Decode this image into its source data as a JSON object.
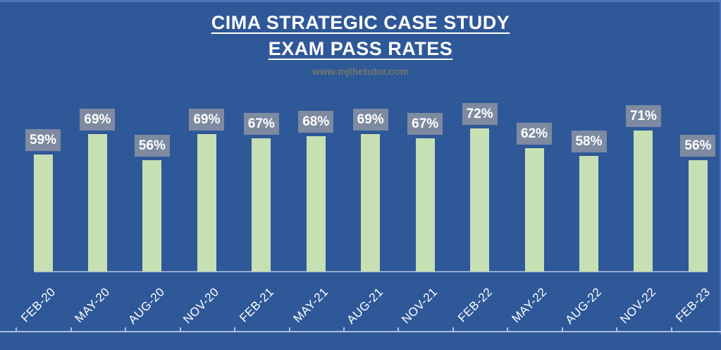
{
  "header": {
    "title_line1": "CIMA STRATEGIC CASE STUDY",
    "title_line2": "EXAM PASS RATES",
    "watermark": "www.mjthetutor.com"
  },
  "chart_data": {
    "type": "bar",
    "title": "CIMA STRATEGIC CASE STUDY EXAM PASS RATES",
    "subtitle": "www.mjthetutor.com",
    "categories": [
      "FEB-20",
      "MAY-20",
      "AUG-20",
      "NOV-20",
      "FEB-21",
      "MAY-21",
      "AUG-21",
      "NOV-21",
      "FEB-22",
      "MAY-22",
      "AUG-22",
      "NOV-22",
      "FEB-23"
    ],
    "values": [
      59,
      69,
      56,
      69,
      67,
      68,
      69,
      67,
      72,
      62,
      58,
      71,
      56
    ],
    "data_labels": [
      "59%",
      "69%",
      "56%",
      "69%",
      "67%",
      "68%",
      "69%",
      "67%",
      "72%",
      "62%",
      "58%",
      "71%",
      "56%"
    ],
    "xlabel": "",
    "ylabel": "",
    "ylim": [
      0,
      90
    ],
    "grid": false,
    "legend": "none",
    "x_label_rotation_deg": -45
  },
  "colors": {
    "background": "#2F5899",
    "edge_border": "#4C74BB",
    "bar_fill": "#C6E0B4",
    "data_label_box": "#7D8AA0",
    "data_label_text": "#FFFFFF",
    "title_text": "#FFFFFF",
    "axis_baseline": "#94A9CE",
    "bottom_axis": "#A8BFE4",
    "watermark_text": "#72786B"
  }
}
